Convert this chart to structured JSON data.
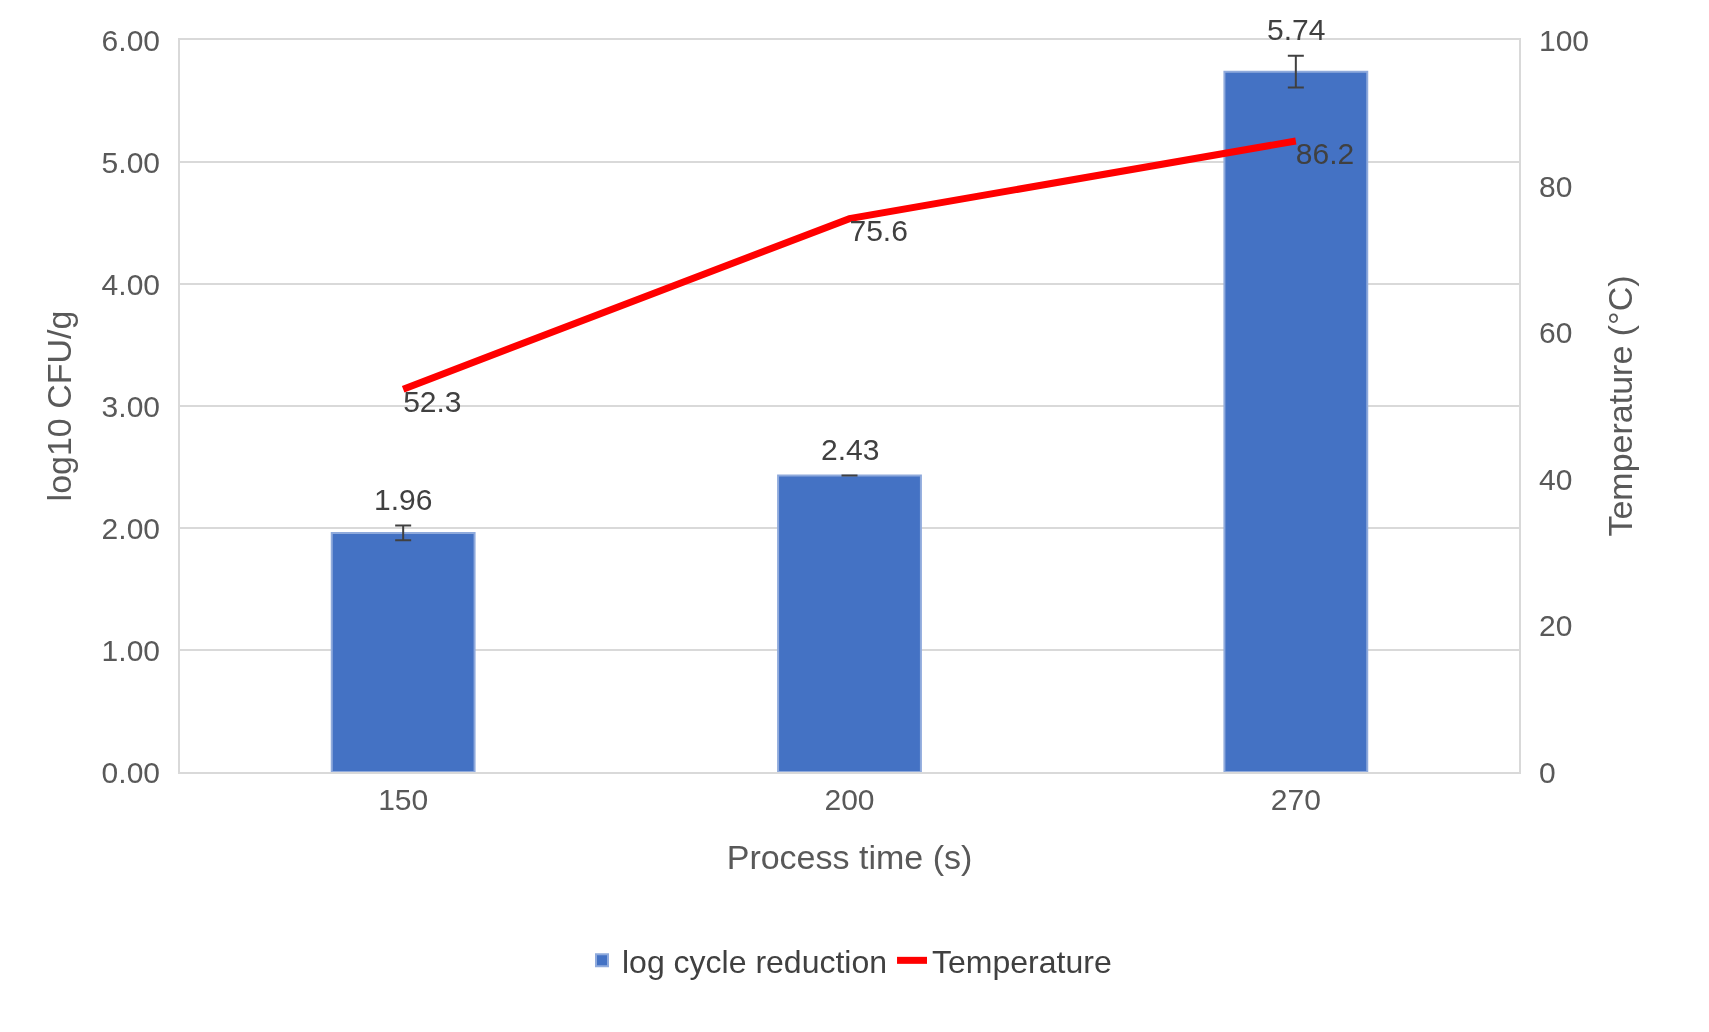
{
  "chart_data": {
    "type": "bar",
    "xlabel": "Process time (s)",
    "ylabel": "log10 CFU/g",
    "y2label": "Temperature (°C)",
    "categories": [
      "150",
      "200",
      "270"
    ],
    "series": [
      {
        "name": "log cycle reduction",
        "color": "#4472c4",
        "values": [
          1.96,
          2.43,
          5.74
        ],
        "errors": [
          0.06,
          0,
          0.13
        ]
      },
      {
        "name": "Temperature",
        "type": "line",
        "axis": "y2",
        "color": "#ff0000",
        "values": [
          52.3,
          75.6,
          86.2
        ],
        "marker": "none",
        "line_style": "solid"
      }
    ],
    "ylim": [
      0,
      6
    ],
    "yticks": [
      {
        "value": 0,
        "label": "0.00"
      },
      {
        "value": 1,
        "label": "1.00"
      },
      {
        "value": 2,
        "label": "2.00"
      },
      {
        "value": 3,
        "label": "3.00"
      },
      {
        "value": 4,
        "label": "4.00"
      },
      {
        "value": 5,
        "label": "5.00"
      },
      {
        "value": 6,
        "label": "6.00"
      }
    ],
    "y2lim": [
      0,
      100
    ],
    "y2ticks": [
      0,
      20,
      40,
      60,
      80,
      100
    ],
    "data_labels": true,
    "grid": "y",
    "legend": "bottom"
  }
}
